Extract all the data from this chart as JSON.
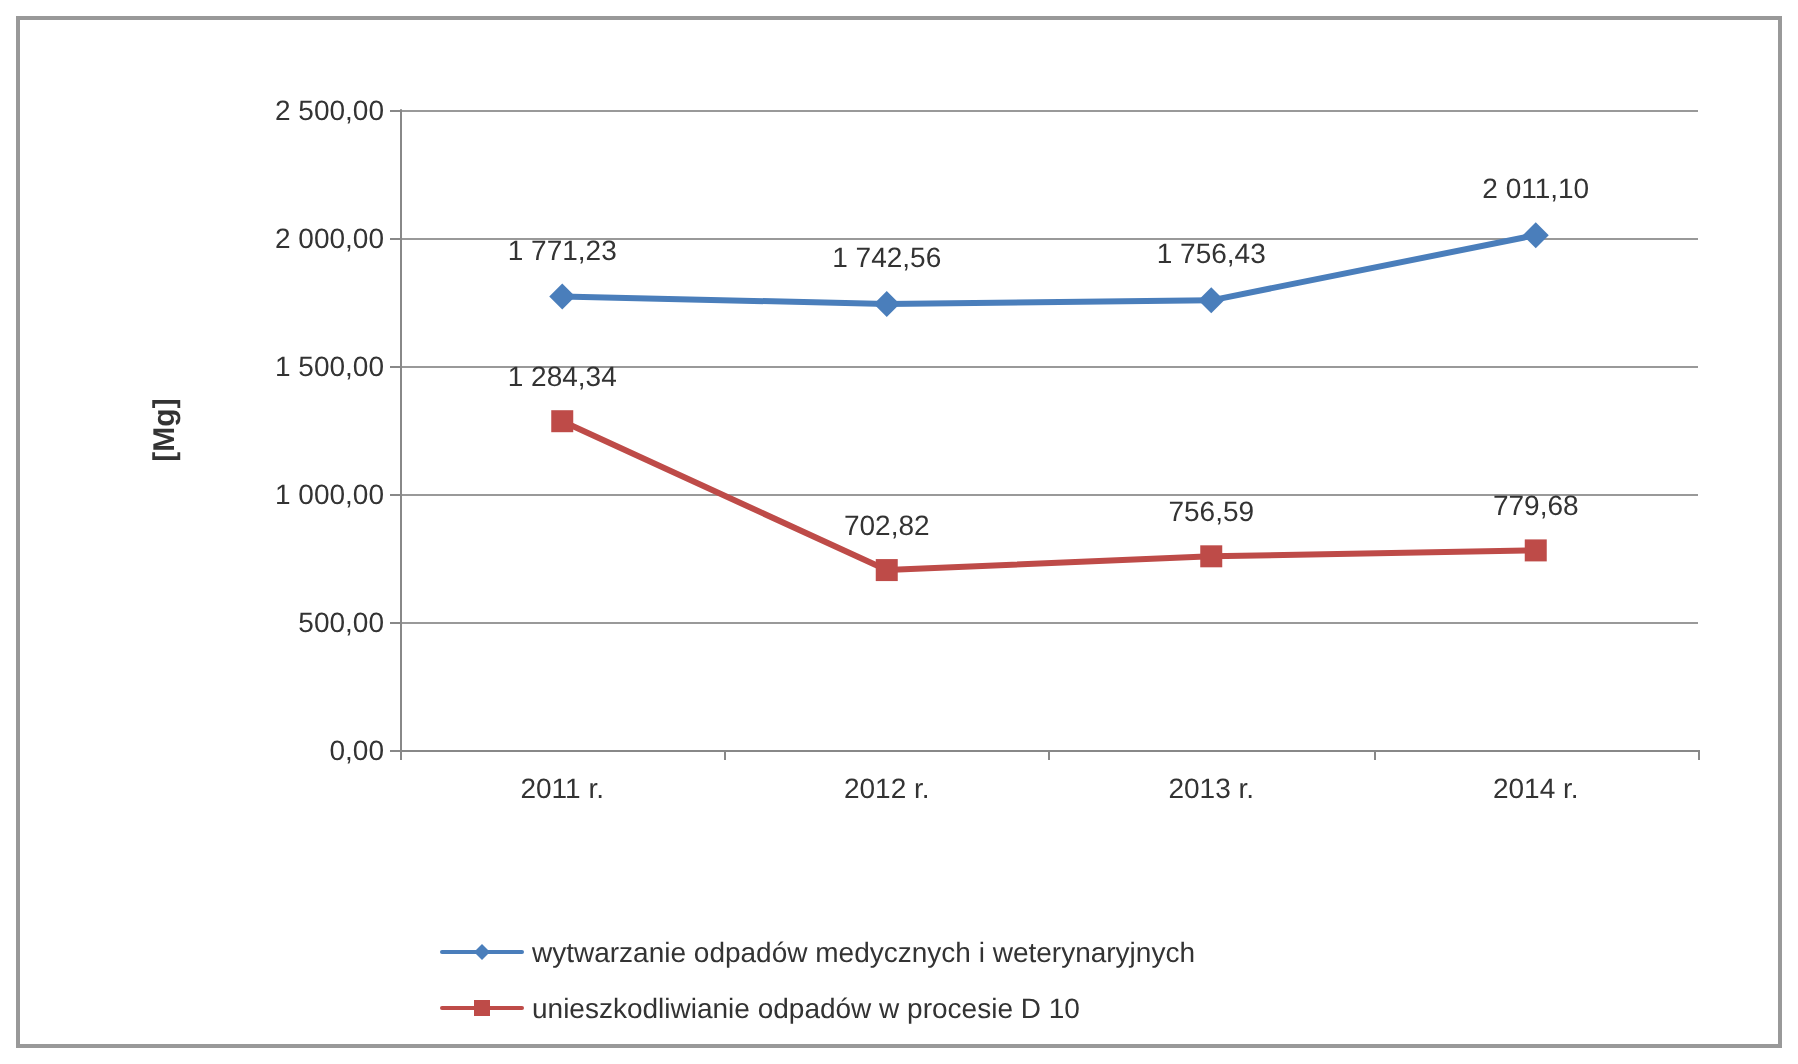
{
  "chart_data": {
    "type": "line",
    "ylabel": "[Mg]",
    "categories": [
      "2011 r.",
      "2012 r.",
      "2013 r.",
      "2014 r."
    ],
    "series": [
      {
        "name": "wytwarzanie odpadów medycznych i weterynaryjnych",
        "color": "#4a7ebb",
        "marker": "diamond",
        "values": [
          1771.23,
          1742.56,
          1756.43,
          2011.1
        ],
        "value_labels": [
          "1 771,23",
          "1 742,56",
          "1 756,43",
          "2 011,10"
        ]
      },
      {
        "name": "unieszkodliwianie odpadów w procesie D 10",
        "color": "#be4b48",
        "marker": "square",
        "values": [
          1284.34,
          702.82,
          756.59,
          779.68
        ],
        "value_labels": [
          "1 284,34",
          "702,82",
          "756,59",
          "779,68"
        ]
      }
    ],
    "ylim": [
      0,
      2500
    ],
    "yticks": [
      {
        "value": 0,
        "label": "0,00"
      },
      {
        "value": 500,
        "label": "500,00"
      },
      {
        "value": 1000,
        "label": "1 000,00"
      },
      {
        "value": 1500,
        "label": "1 500,00"
      },
      {
        "value": 2000,
        "label": "2 000,00"
      },
      {
        "value": 2500,
        "label": "2 500,00"
      }
    ],
    "grid": "y",
    "legend": "bottom",
    "line_style": "solid"
  }
}
